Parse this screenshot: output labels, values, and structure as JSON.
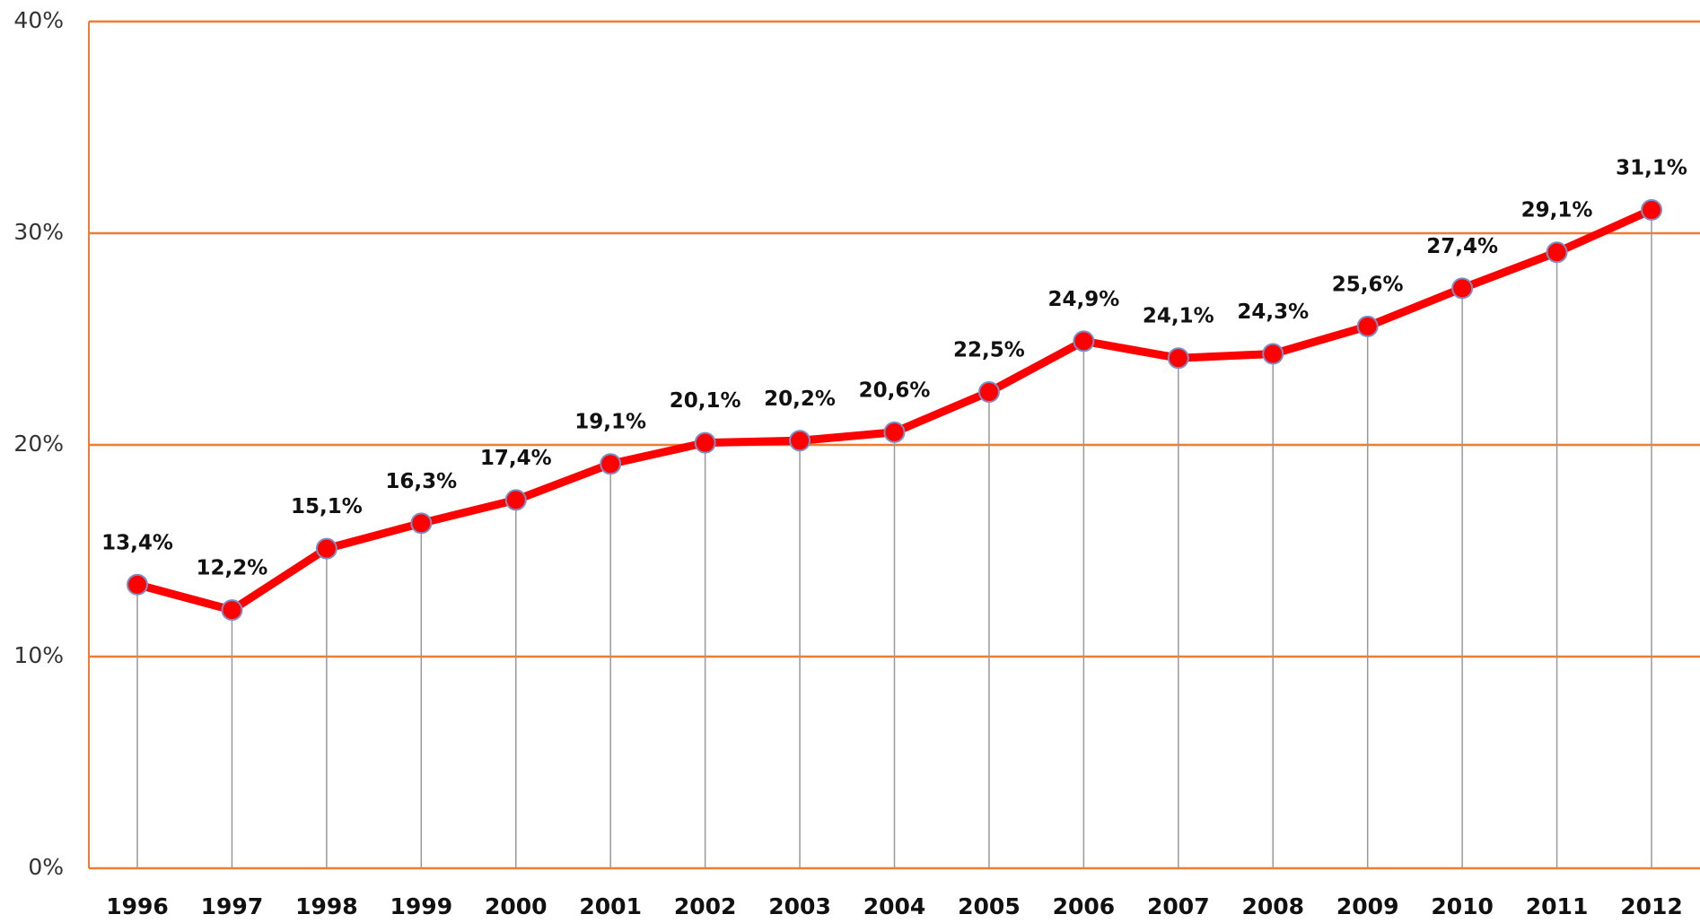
{
  "chart_data": {
    "type": "line",
    "categories": [
      "1996",
      "1997",
      "1998",
      "1999",
      "2000",
      "2001",
      "2002",
      "2003",
      "2004",
      "2005",
      "2006",
      "2007",
      "2008",
      "2009",
      "2010",
      "2011",
      "2012"
    ],
    "series": [
      {
        "color": "#ff0000",
        "values": [
          13.4,
          12.2,
          15.1,
          16.3,
          17.4,
          19.1,
          20.1,
          20.2,
          20.6,
          22.5,
          24.9,
          24.1,
          24.3,
          25.6,
          27.4,
          29.1,
          31.1
        ],
        "value_labels": [
          "13,4%",
          "12,2%",
          "15,1%",
          "16,3%",
          "17,4%",
          "19,1%",
          "20,1%",
          "20,2%",
          "20,6%",
          "22,5%",
          "24,9%",
          "24,1%",
          "24,3%",
          "25,6%",
          "27,4%",
          "29,1%",
          "31,1%"
        ]
      }
    ],
    "ylim": [
      0,
      40
    ],
    "yticks": [
      {
        "value": 0,
        "label": "0%"
      },
      {
        "value": 10,
        "label": "10%"
      },
      {
        "value": 20,
        "label": "20%"
      },
      {
        "value": 30,
        "label": "30%"
      },
      {
        "value": 40,
        "label": "40%"
      }
    ],
    "grid": true
  }
}
